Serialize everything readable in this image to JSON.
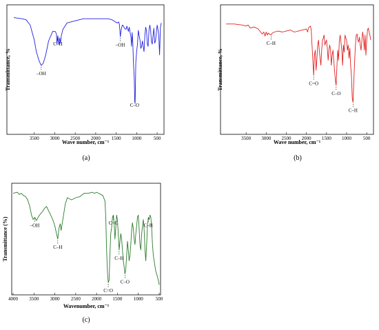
{
  "chart_data": [
    {
      "type": "line",
      "panel_label": "(a)",
      "xlabel": "Wave number, cm⁻¹",
      "ylabel": "Transmittance, %",
      "xlim": [
        4000,
        400
      ],
      "xticks": [
        3500,
        3000,
        2500,
        2000,
        1500,
        1000,
        500
      ],
      "ylim": [
        0,
        100
      ],
      "color": "#1f1fe0",
      "series": [
        {
          "x": [
            4000,
            3800,
            3700,
            3600,
            3500,
            3450,
            3380,
            3330,
            3280,
            3220,
            3150,
            3050,
            2990,
            2960,
            2945,
            2925,
            2900,
            2880,
            2860,
            2840,
            2800,
            2700,
            2500,
            2300,
            2100,
            1900,
            1700,
            1600,
            1520,
            1470,
            1440,
            1420,
            1400,
            1380,
            1350,
            1320,
            1300,
            1260,
            1240,
            1200,
            1180,
            1160,
            1140,
            1125,
            1110,
            1095,
            1080,
            1060,
            1050,
            1040,
            1030,
            1020,
            1000,
            980,
            960,
            940,
            920,
            900,
            880,
            860,
            840,
            820,
            800,
            780,
            760,
            740,
            720,
            700,
            680,
            660,
            640,
            620,
            600,
            580,
            560,
            540,
            520,
            500,
            480,
            460,
            440,
            420,
            400
          ],
          "y": [
            97,
            96,
            95,
            90,
            76,
            65,
            56,
            52,
            54,
            62,
            75,
            84,
            84,
            82,
            72,
            80,
            72,
            78,
            73,
            80,
            86,
            92,
            94,
            96,
            96,
            96,
            96,
            95,
            93,
            92,
            93,
            90,
            79,
            85,
            90,
            89,
            87,
            86,
            89,
            84,
            88,
            83,
            79,
            70,
            83,
            74,
            55,
            40,
            22,
            16,
            30,
            55,
            65,
            72,
            85,
            80,
            76,
            68,
            70,
            75,
            70,
            65,
            80,
            88,
            85,
            72,
            70,
            85,
            90,
            86,
            75,
            72,
            80,
            87,
            73,
            75,
            83,
            90,
            86,
            80,
            62,
            88,
            92
          ]
        }
      ],
      "annotations": [
        {
          "label": "–OH",
          "x": 3330
        },
        {
          "label": "C–H",
          "x": 2925
        },
        {
          "label": "–OH",
          "x": 1400
        },
        {
          "label": "C–O",
          "x": 1050
        }
      ]
    },
    {
      "type": "line",
      "panel_label": "(b)",
      "xlabel": "Wave number, cm⁻¹",
      "ylabel": "Transmittance, %",
      "xlim": [
        4000,
        400
      ],
      "xticks": [
        3500,
        3000,
        2500,
        2000,
        1500,
        1000,
        500
      ],
      "ylim": [
        0,
        100
      ],
      "color": "#e01f1f",
      "series": [
        {
          "x": [
            4000,
            3800,
            3600,
            3500,
            3450,
            3400,
            3300,
            3200,
            3100,
            3060,
            3030,
            3000,
            2970,
            2950,
            2920,
            2880,
            2850,
            2800,
            2700,
            2600,
            2500,
            2400,
            2300,
            2200,
            2100,
            2000,
            1970,
            1950,
            1900,
            1880,
            1860,
            1840,
            1820,
            1800,
            1780,
            1760,
            1740,
            1720,
            1700,
            1680,
            1660,
            1640,
            1620,
            1600,
            1580,
            1560,
            1540,
            1520,
            1500,
            1480,
            1460,
            1440,
            1420,
            1400,
            1380,
            1360,
            1340,
            1320,
            1300,
            1280,
            1260,
            1240,
            1220,
            1200,
            1180,
            1160,
            1140,
            1120,
            1100,
            1080,
            1060,
            1040,
            1020,
            1000,
            980,
            960,
            940,
            920,
            900,
            880,
            860,
            840,
            820,
            800,
            780,
            760,
            740,
            720,
            700,
            680,
            660,
            640,
            620,
            600,
            580,
            560,
            540,
            520,
            500,
            480,
            460,
            440,
            420,
            400
          ],
          "y": [
            96,
            96,
            95,
            94,
            95,
            92,
            93,
            91,
            86,
            88,
            84,
            88,
            85,
            87,
            86,
            85,
            87,
            88,
            89,
            88,
            89,
            90,
            88,
            89,
            90,
            91,
            88,
            92,
            94,
            90,
            75,
            60,
            45,
            65,
            70,
            50,
            60,
            75,
            80,
            70,
            62,
            55,
            70,
            80,
            82,
            85,
            75,
            78,
            80,
            72,
            60,
            70,
            75,
            70,
            55,
            65,
            70,
            60,
            50,
            40,
            35,
            55,
            70,
            60,
            80,
            85,
            78,
            70,
            55,
            75,
            68,
            85,
            82,
            80,
            70,
            75,
            62,
            72,
            55,
            45,
            22,
            18,
            40,
            60,
            75,
            85,
            86,
            80,
            78,
            83,
            75,
            70,
            80,
            88,
            82,
            70,
            85,
            65,
            80,
            90,
            92,
            88,
            85,
            80
          ]
        }
      ],
      "annotations": [
        {
          "label": "C–H",
          "x": 2880
        },
        {
          "label": "C=O",
          "x": 1820
        },
        {
          "label": "C–O",
          "x": 1260
        },
        {
          "label": "C–H",
          "x": 840
        }
      ]
    },
    {
      "type": "line",
      "panel_label": "(c)",
      "xlabel": "Wavenumber, cm⁻¹",
      "ylabel": "Transmittance (%)",
      "xlim": [
        4000,
        500
      ],
      "xticks": [
        4000,
        3500,
        3000,
        2500,
        2000,
        1500,
        1000,
        500
      ],
      "ylim": [
        0,
        100
      ],
      "color": "#2a7a2a",
      "series": [
        {
          "x": [
            4000,
            3900,
            3850,
            3800,
            3750,
            3700,
            3650,
            3600,
            3560,
            3520,
            3480,
            3440,
            3400,
            3350,
            3300,
            3250,
            3200,
            3150,
            3100,
            3050,
            3000,
            2960,
            2930,
            2900,
            2870,
            2850,
            2800,
            2750,
            2700,
            2650,
            2600,
            2500,
            2400,
            2300,
            2200,
            2100,
            2050,
            2000,
            1950,
            1900,
            1850,
            1800,
            1780,
            1760,
            1740,
            1720,
            1700,
            1680,
            1660,
            1640,
            1620,
            1600,
            1580,
            1560,
            1540,
            1520,
            1500,
            1480,
            1460,
            1440,
            1420,
            1400,
            1380,
            1360,
            1340,
            1320,
            1300,
            1280,
            1260,
            1240,
            1220,
            1200,
            1180,
            1160,
            1140,
            1120,
            1100,
            1080,
            1060,
            1040,
            1020,
            1000,
            980,
            960,
            940,
            920,
            900,
            880,
            860,
            840,
            820,
            800,
            780,
            760,
            740,
            720,
            700,
            680,
            660,
            640,
            620,
            600,
            580,
            560,
            540,
            520,
            500
          ],
          "y": [
            92,
            93,
            91,
            92,
            90,
            89,
            86,
            80,
            72,
            68,
            70,
            67,
            70,
            73,
            75,
            78,
            80,
            76,
            72,
            68,
            62,
            55,
            50,
            60,
            64,
            58,
            70,
            82,
            88,
            87,
            86,
            88,
            89,
            92,
            92,
            93,
            92,
            93,
            92,
            91,
            90,
            85,
            70,
            40,
            20,
            10,
            12,
            35,
            55,
            60,
            70,
            72,
            65,
            50,
            60,
            72,
            68,
            55,
            40,
            48,
            55,
            50,
            40,
            30,
            25,
            18,
            22,
            35,
            48,
            40,
            30,
            35,
            45,
            58,
            65,
            60,
            50,
            45,
            55,
            62,
            70,
            72,
            60,
            45,
            40,
            55,
            62,
            68,
            58,
            40,
            30,
            45,
            62,
            70,
            68,
            72,
            70,
            60,
            45,
            35,
            30,
            25,
            20,
            18,
            15,
            12,
            8
          ]
        }
      ],
      "annotations": [
        {
          "label": "–OH",
          "x": 3480
        },
        {
          "label": "C–H",
          "x": 2930
        },
        {
          "label": "C=C",
          "x": 1600
        },
        {
          "label": "C–H",
          "x": 1460
        },
        {
          "label": "C=O",
          "x": 1720
        },
        {
          "label": "C–O",
          "x": 1320
        },
        {
          "label": "C–H",
          "x": 760
        }
      ]
    }
  ]
}
